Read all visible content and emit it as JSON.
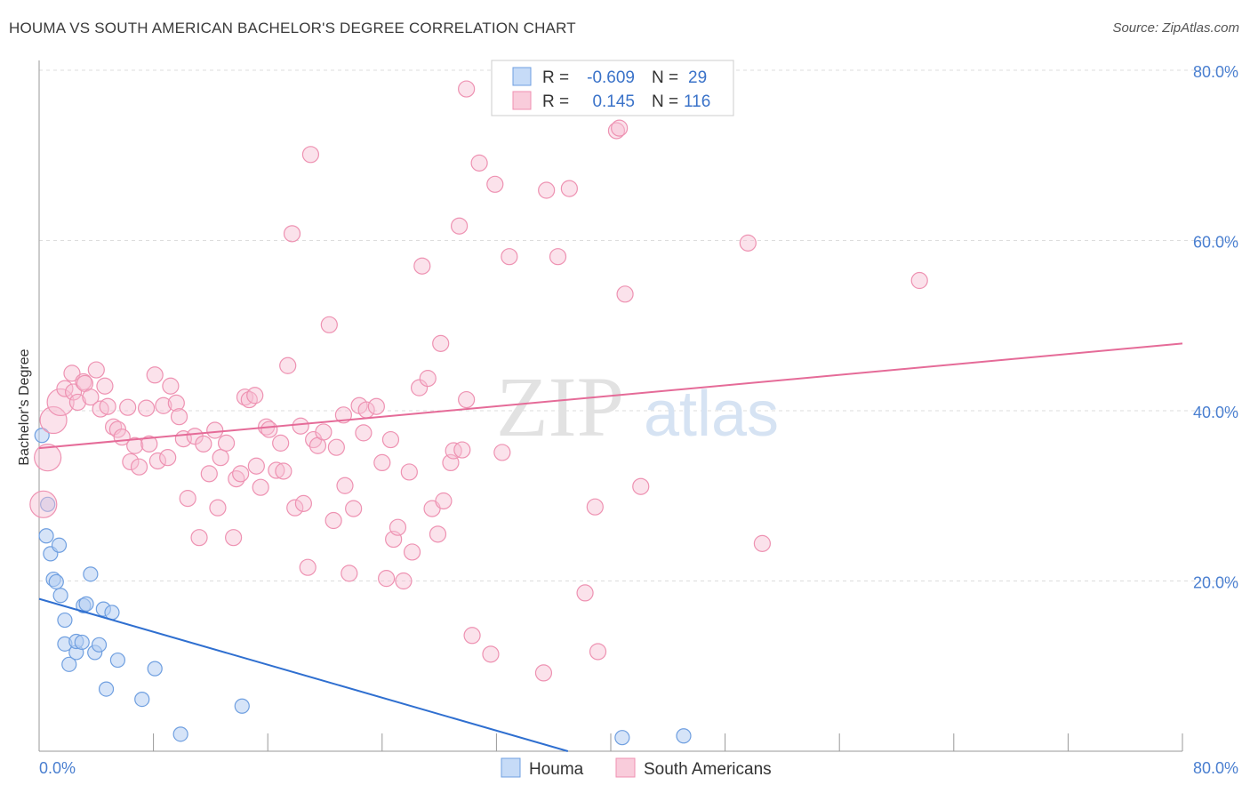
{
  "title": "HOUMA VS SOUTH AMERICAN BACHELOR'S DEGREE CORRELATION CHART",
  "source": "Source: ZipAtlas.com",
  "watermark": {
    "zip": "ZIP",
    "atlas": "atlas"
  },
  "legend": {
    "r_label": "R =",
    "n_label": "N =",
    "houma": {
      "r": "-0.609",
      "n": "29",
      "color": "#6f9fe0"
    },
    "south": {
      "r": "0.145",
      "n": "116",
      "color": "#f08fb0"
    }
  },
  "bottom_legend": {
    "houma": "Houma",
    "south": "South Americans"
  },
  "chart_data": {
    "type": "scatter",
    "title": "HOUMA VS SOUTH AMERICAN BACHELOR'S DEGREE CORRELATION CHART",
    "xlabel": "",
    "ylabel": "Bachelor's Degree",
    "xlim": [
      0,
      80
    ],
    "ylim": [
      0,
      80
    ],
    "y_ticks": [
      {
        "value": 20,
        "label": "20.0%"
      },
      {
        "value": 40,
        "label": "40.0%"
      },
      {
        "value": 60,
        "label": "60.0%"
      },
      {
        "value": 80,
        "label": "80.0%"
      }
    ],
    "x_tick_labels": {
      "min": "0.0%",
      "max": "80.0%"
    },
    "grid": true,
    "series": [
      {
        "name": "Houma",
        "color": "#6f9fe0",
        "trend": {
          "x0": 0,
          "y0": 17.9,
          "x1": 37,
          "y1": 0
        },
        "points": [
          [
            0.2,
            37.1
          ],
          [
            0.5,
            25.3
          ],
          [
            0.6,
            29.0
          ],
          [
            0.8,
            23.2
          ],
          [
            1.0,
            20.2
          ],
          [
            1.2,
            19.9
          ],
          [
            1.4,
            24.2
          ],
          [
            1.5,
            18.3
          ],
          [
            1.8,
            15.4
          ],
          [
            1.8,
            12.6
          ],
          [
            2.1,
            10.2
          ],
          [
            2.6,
            11.6
          ],
          [
            2.6,
            12.9
          ],
          [
            3.0,
            12.8
          ],
          [
            3.1,
            17.1
          ],
          [
            3.3,
            17.3
          ],
          [
            3.6,
            20.8
          ],
          [
            3.9,
            11.6
          ],
          [
            4.2,
            12.5
          ],
          [
            4.5,
            16.7
          ],
          [
            4.7,
            7.3
          ],
          [
            5.1,
            16.3
          ],
          [
            5.5,
            10.7
          ],
          [
            7.2,
            6.1
          ],
          [
            8.1,
            9.7
          ],
          [
            9.9,
            2.0
          ],
          [
            14.2,
            5.3
          ],
          [
            40.8,
            1.6
          ],
          [
            45.1,
            1.8
          ]
        ]
      },
      {
        "name": "South Americans",
        "color": "#f08fb0",
        "trend": {
          "x0": 0,
          "y0": 35.6,
          "x1": 80,
          "y1": 47.9
        },
        "points": [
          [
            0.3,
            29.0
          ],
          [
            0.6,
            34.5
          ],
          [
            1.0,
            38.9
          ],
          [
            1.5,
            41.0
          ],
          [
            1.8,
            42.6
          ],
          [
            2.3,
            44.4
          ],
          [
            2.4,
            42.2
          ],
          [
            2.7,
            41.0
          ],
          [
            3.1,
            43.4
          ],
          [
            3.2,
            43.2
          ],
          [
            3.6,
            41.6
          ],
          [
            4.0,
            44.8
          ],
          [
            4.3,
            40.2
          ],
          [
            4.6,
            42.9
          ],
          [
            4.8,
            40.5
          ],
          [
            5.2,
            38.1
          ],
          [
            5.5,
            37.8
          ],
          [
            5.8,
            36.9
          ],
          [
            6.2,
            40.4
          ],
          [
            6.4,
            34.0
          ],
          [
            6.7,
            35.9
          ],
          [
            7.0,
            33.4
          ],
          [
            7.5,
            40.3
          ],
          [
            7.7,
            36.1
          ],
          [
            8.1,
            44.2
          ],
          [
            8.3,
            34.1
          ],
          [
            8.7,
            40.6
          ],
          [
            9.0,
            34.5
          ],
          [
            9.2,
            42.9
          ],
          [
            9.6,
            40.9
          ],
          [
            9.8,
            39.3
          ],
          [
            10.1,
            36.7
          ],
          [
            10.4,
            29.7
          ],
          [
            10.9,
            37.0
          ],
          [
            11.2,
            25.1
          ],
          [
            11.5,
            36.1
          ],
          [
            11.9,
            32.6
          ],
          [
            12.3,
            37.7
          ],
          [
            12.5,
            28.6
          ],
          [
            12.7,
            34.5
          ],
          [
            13.1,
            36.2
          ],
          [
            13.6,
            25.1
          ],
          [
            13.8,
            32.0
          ],
          [
            14.1,
            32.6
          ],
          [
            14.4,
            41.6
          ],
          [
            14.7,
            41.3
          ],
          [
            15.1,
            41.8
          ],
          [
            15.2,
            33.5
          ],
          [
            15.5,
            31.0
          ],
          [
            15.9,
            38.1
          ],
          [
            16.1,
            37.8
          ],
          [
            16.6,
            33.0
          ],
          [
            16.9,
            36.2
          ],
          [
            17.1,
            32.9
          ],
          [
            17.4,
            45.3
          ],
          [
            17.7,
            60.8
          ],
          [
            17.9,
            28.6
          ],
          [
            18.3,
            38.2
          ],
          [
            18.5,
            29.1
          ],
          [
            18.8,
            21.6
          ],
          [
            19.0,
            70.1
          ],
          [
            19.2,
            36.6
          ],
          [
            19.5,
            35.9
          ],
          [
            19.9,
            37.5
          ],
          [
            20.3,
            50.1
          ],
          [
            20.6,
            27.1
          ],
          [
            20.8,
            35.7
          ],
          [
            21.3,
            39.5
          ],
          [
            21.4,
            31.2
          ],
          [
            21.7,
            20.9
          ],
          [
            22.0,
            28.5
          ],
          [
            22.4,
            40.6
          ],
          [
            22.7,
            37.4
          ],
          [
            22.9,
            40.1
          ],
          [
            23.6,
            40.5
          ],
          [
            24.0,
            33.9
          ],
          [
            24.3,
            20.3
          ],
          [
            24.6,
            36.6
          ],
          [
            24.8,
            24.9
          ],
          [
            25.1,
            26.3
          ],
          [
            25.5,
            20.0
          ],
          [
            25.9,
            32.8
          ],
          [
            26.1,
            23.4
          ],
          [
            26.6,
            42.7
          ],
          [
            26.8,
            57.0
          ],
          [
            27.2,
            43.8
          ],
          [
            27.5,
            28.5
          ],
          [
            27.9,
            25.5
          ],
          [
            28.1,
            47.9
          ],
          [
            28.3,
            29.4
          ],
          [
            28.8,
            33.9
          ],
          [
            29.0,
            35.3
          ],
          [
            29.4,
            61.7
          ],
          [
            29.6,
            35.4
          ],
          [
            29.9,
            41.3
          ],
          [
            29.9,
            77.8
          ],
          [
            30.3,
            13.6
          ],
          [
            30.8,
            69.1
          ],
          [
            31.6,
            11.4
          ],
          [
            31.9,
            66.6
          ],
          [
            32.4,
            35.1
          ],
          [
            32.9,
            58.1
          ],
          [
            35.3,
            9.2
          ],
          [
            35.5,
            65.9
          ],
          [
            36.3,
            58.1
          ],
          [
            37.1,
            66.1
          ],
          [
            38.2,
            18.6
          ],
          [
            38.9,
            28.7
          ],
          [
            39.1,
            11.7
          ],
          [
            40.4,
            72.9
          ],
          [
            40.6,
            73.2
          ],
          [
            41.0,
            53.7
          ],
          [
            42.1,
            31.1
          ],
          [
            49.6,
            59.7
          ],
          [
            50.6,
            24.4
          ],
          [
            61.6,
            55.3
          ]
        ]
      }
    ]
  }
}
